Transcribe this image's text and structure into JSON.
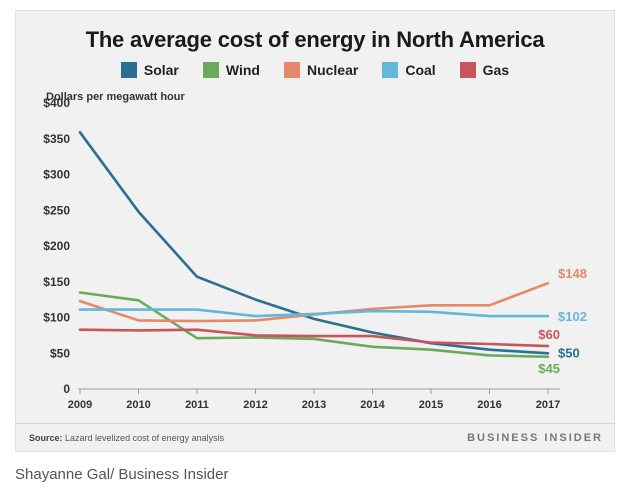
{
  "chart_data": {
    "type": "line",
    "title": "The average cost of energy in North America",
    "ylabel": "Dollars per megawatt hour",
    "xlabel": "",
    "categories": [
      "2009",
      "2010",
      "2011",
      "2012",
      "2013",
      "2014",
      "2015",
      "2016",
      "2017"
    ],
    "ylim": [
      0,
      400
    ],
    "yticks": [
      0,
      50,
      100,
      150,
      200,
      250,
      300,
      350,
      400
    ],
    "ytick_labels": [
      "0",
      "$50",
      "$100",
      "$150",
      "$200",
      "$250",
      "$300",
      "$350",
      "$400"
    ],
    "series": [
      {
        "name": "Solar",
        "color": "#2a6f8f",
        "values": [
          359,
          248,
          157,
          125,
          98,
          79,
          64,
          55,
          50
        ],
        "end_label": "$50"
      },
      {
        "name": "Wind",
        "color": "#6aaa5a",
        "values": [
          135,
          124,
          71,
          72,
          70,
          59,
          55,
          47,
          45
        ],
        "end_label": "$45"
      },
      {
        "name": "Nuclear",
        "color": "#e48a6a",
        "values": [
          123,
          96,
          95,
          96,
          104,
          112,
          117,
          117,
          148
        ],
        "end_label": "$148"
      },
      {
        "name": "Coal",
        "color": "#63b7d9",
        "values": [
          111,
          111,
          111,
          102,
          105,
          109,
          108,
          102,
          102
        ],
        "end_label": "$102"
      },
      {
        "name": "Gas",
        "color": "#c9555b",
        "values": [
          83,
          82,
          83,
          75,
          74,
          74,
          65,
          63,
          60
        ],
        "end_label": "$60"
      }
    ]
  },
  "source": {
    "label": "Source:",
    "text": "Lazard levelized cost of energy analysis"
  },
  "brand": "BUSINESS INSIDER",
  "credit": "Shayanne Gal/ Business Insider"
}
